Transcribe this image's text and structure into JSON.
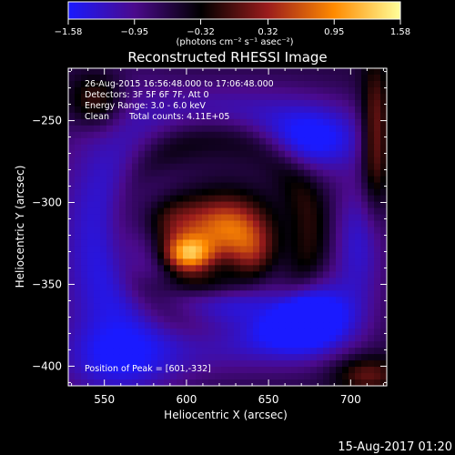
{
  "chart_data": {
    "type": "heatmap",
    "title": "Reconstructed RHESSI Image",
    "xlabel": "Heliocentric X (arcsec)",
    "ylabel": "Heliocentric Y (arcsec)",
    "xlim": [
      528,
      722
    ],
    "ylim": [
      -412,
      -218
    ],
    "x_ticks": [
      550,
      600,
      650,
      700
    ],
    "y_ticks": [
      -400,
      -350,
      -300,
      -250
    ],
    "x_tick_labels": [
      "550",
      "600",
      "650",
      "700"
    ],
    "y_tick_labels": [
      "−400",
      "−350",
      "−300",
      "−250"
    ],
    "colorbar": {
      "min": -1.58,
      "max": 1.58,
      "tick_values": [
        -1.58,
        -0.95,
        -0.32,
        0.32,
        0.95,
        1.58
      ],
      "tick_labels": [
        "−1.58",
        "−0.95",
        "−0.32",
        "0.32",
        "0.95",
        "1.58"
      ],
      "units_label": "(photons cm⁻² s⁻¹ asec⁻²)",
      "colors": [
        "#1a1aff",
        "#4b0a8c",
        "#000000",
        "#9a1c1c",
        "#ff8a00",
        "#ffff9a"
      ]
    },
    "annotations": {
      "time_range": "26-Aug-2015 16:56:48.000 to 17:06:48.000",
      "detectors": "Detectors: 3F 5F 6F 7F, Att 0",
      "energy": "Energy Range: 3.0 - 6.0 keV",
      "clean": "Clean",
      "counts": "Total counts: 4.11E+05",
      "peak": "Position of Peak = [601,-332]"
    },
    "peak": {
      "x": 601,
      "y": -332
    },
    "sources": [
      {
        "x": 555,
        "y": -328,
        "amp": -0.95,
        "sx": 24,
        "sy": 60
      },
      {
        "x": 678,
        "y": -262,
        "amp": -0.95,
        "sx": 22,
        "sy": 14
      },
      {
        "x": 640,
        "y": -372,
        "amp": -1.1,
        "sx": 34,
        "sy": 18
      },
      {
        "x": 675,
        "y": -372,
        "amp": -1.05,
        "sx": 18,
        "sy": 14
      },
      {
        "x": 565,
        "y": -395,
        "amp": -0.55,
        "sx": 30,
        "sy": 14
      },
      {
        "x": 625,
        "y": -245,
        "amp": -0.55,
        "sx": 45,
        "sy": 14
      },
      {
        "x": 705,
        "y": -325,
        "amp": -0.7,
        "sx": 12,
        "sy": 28
      },
      {
        "x": 601,
        "y": -332,
        "amp": 1.75,
        "sx": 11,
        "sy": 8
      },
      {
        "x": 625,
        "y": -315,
        "amp": 1.3,
        "sx": 16,
        "sy": 13
      },
      {
        "x": 590,
        "y": -312,
        "amp": 0.85,
        "sx": 15,
        "sy": 12
      },
      {
        "x": 640,
        "y": -332,
        "amp": 0.75,
        "sx": 10,
        "sy": 12
      },
      {
        "x": 612,
        "y": -350,
        "amp": 0.55,
        "sx": 22,
        "sy": 6
      },
      {
        "x": 545,
        "y": -238,
        "amp": 0.85,
        "sx": 12,
        "sy": 12
      },
      {
        "x": 715,
        "y": -260,
        "amp": 0.95,
        "sx": 6,
        "sy": 30
      },
      {
        "x": 710,
        "y": -405,
        "amp": 0.7,
        "sx": 14,
        "sy": 8
      }
    ],
    "background": -0.6,
    "ring": {
      "x": 618,
      "y": -318,
      "r": 58,
      "w": 9,
      "amp": 0.45
    }
  },
  "footer": {
    "timestamp": "15-Aug-2017 01:20"
  }
}
